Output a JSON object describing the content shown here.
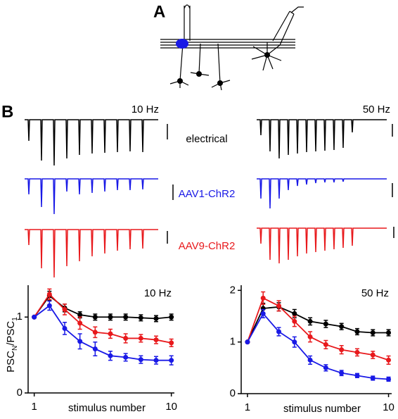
{
  "panel_a": {
    "label": "A"
  },
  "panel_b": {
    "label": "B",
    "traces": {
      "left_rate": "10 Hz",
      "right_rate": "50 Hz",
      "row_labels": [
        "electrical",
        "AAV1-ChR2",
        "AAV9-ChR2"
      ]
    }
  },
  "chart_data": [
    {
      "type": "scatter",
      "title": "10 Hz",
      "xlabel": "stimulus number",
      "ylabel": {
        "text": "PSC",
        "sub": "N",
        "text2": "/PSC",
        "sub2": "1"
      },
      "x": [
        1,
        2,
        3,
        4,
        5,
        6,
        7,
        8,
        9,
        10
      ],
      "xlim": [
        0.6,
        10.2
      ],
      "xticks": [
        1,
        10
      ],
      "ylim": [
        0,
        1.42
      ],
      "yticks": [
        0,
        1
      ],
      "series": [
        {
          "name": "electrical",
          "color": "#000000",
          "values": [
            1,
            1.28,
            1.12,
            1.03,
            1.0,
            1.0,
            1.0,
            0.99,
            0.98,
            1.0
          ],
          "errors": [
            0,
            0.06,
            0.05,
            0.04,
            0.04,
            0.04,
            0.04,
            0.04,
            0.04,
            0.04
          ]
        },
        {
          "name": "AAV9-ChR2",
          "color": "#e8191c",
          "values": [
            1,
            1.3,
            1.1,
            0.92,
            0.8,
            0.78,
            0.72,
            0.72,
            0.7,
            0.66
          ],
          "errors": [
            0,
            0.07,
            0.07,
            0.08,
            0.07,
            0.06,
            0.06,
            0.05,
            0.05,
            0.05
          ]
        },
        {
          "name": "AAV1-ChR2",
          "color": "#1919e6",
          "values": [
            1,
            1.15,
            0.85,
            0.68,
            0.58,
            0.49,
            0.47,
            0.44,
            0.43,
            0.43
          ],
          "errors": [
            0,
            0.06,
            0.08,
            0.1,
            0.09,
            0.06,
            0.05,
            0.05,
            0.05,
            0.06
          ]
        }
      ]
    },
    {
      "type": "scatter",
      "title": "50 Hz",
      "xlabel": "stimulus number",
      "x": [
        1,
        2,
        3,
        4,
        5,
        6,
        7,
        8,
        9,
        10
      ],
      "xlim": [
        0.6,
        10.2
      ],
      "xticks": [
        1,
        10
      ],
      "ylim": [
        0,
        2.1
      ],
      "yticks": [
        0,
        1,
        2
      ],
      "series": [
        {
          "name": "electrical",
          "color": "#000000",
          "values": [
            1,
            1.65,
            1.68,
            1.55,
            1.4,
            1.35,
            1.3,
            1.2,
            1.18,
            1.18
          ],
          "errors": [
            0,
            0.1,
            0.08,
            0.08,
            0.07,
            0.07,
            0.06,
            0.06,
            0.06,
            0.06
          ]
        },
        {
          "name": "AAV9-ChR2",
          "color": "#e8191c",
          "values": [
            1,
            1.85,
            1.7,
            1.4,
            1.1,
            0.95,
            0.85,
            0.8,
            0.75,
            0.65
          ],
          "errors": [
            0,
            0.12,
            0.1,
            0.1,
            0.1,
            0.08,
            0.08,
            0.07,
            0.07,
            0.08
          ]
        },
        {
          "name": "AAV1-ChR2",
          "color": "#1919e6",
          "values": [
            1,
            1.55,
            1.2,
            1.0,
            0.65,
            0.5,
            0.4,
            0.35,
            0.3,
            0.28
          ],
          "errors": [
            0,
            0.08,
            0.08,
            0.1,
            0.08,
            0.06,
            0.05,
            0.04,
            0.04,
            0.04
          ]
        }
      ]
    }
  ]
}
